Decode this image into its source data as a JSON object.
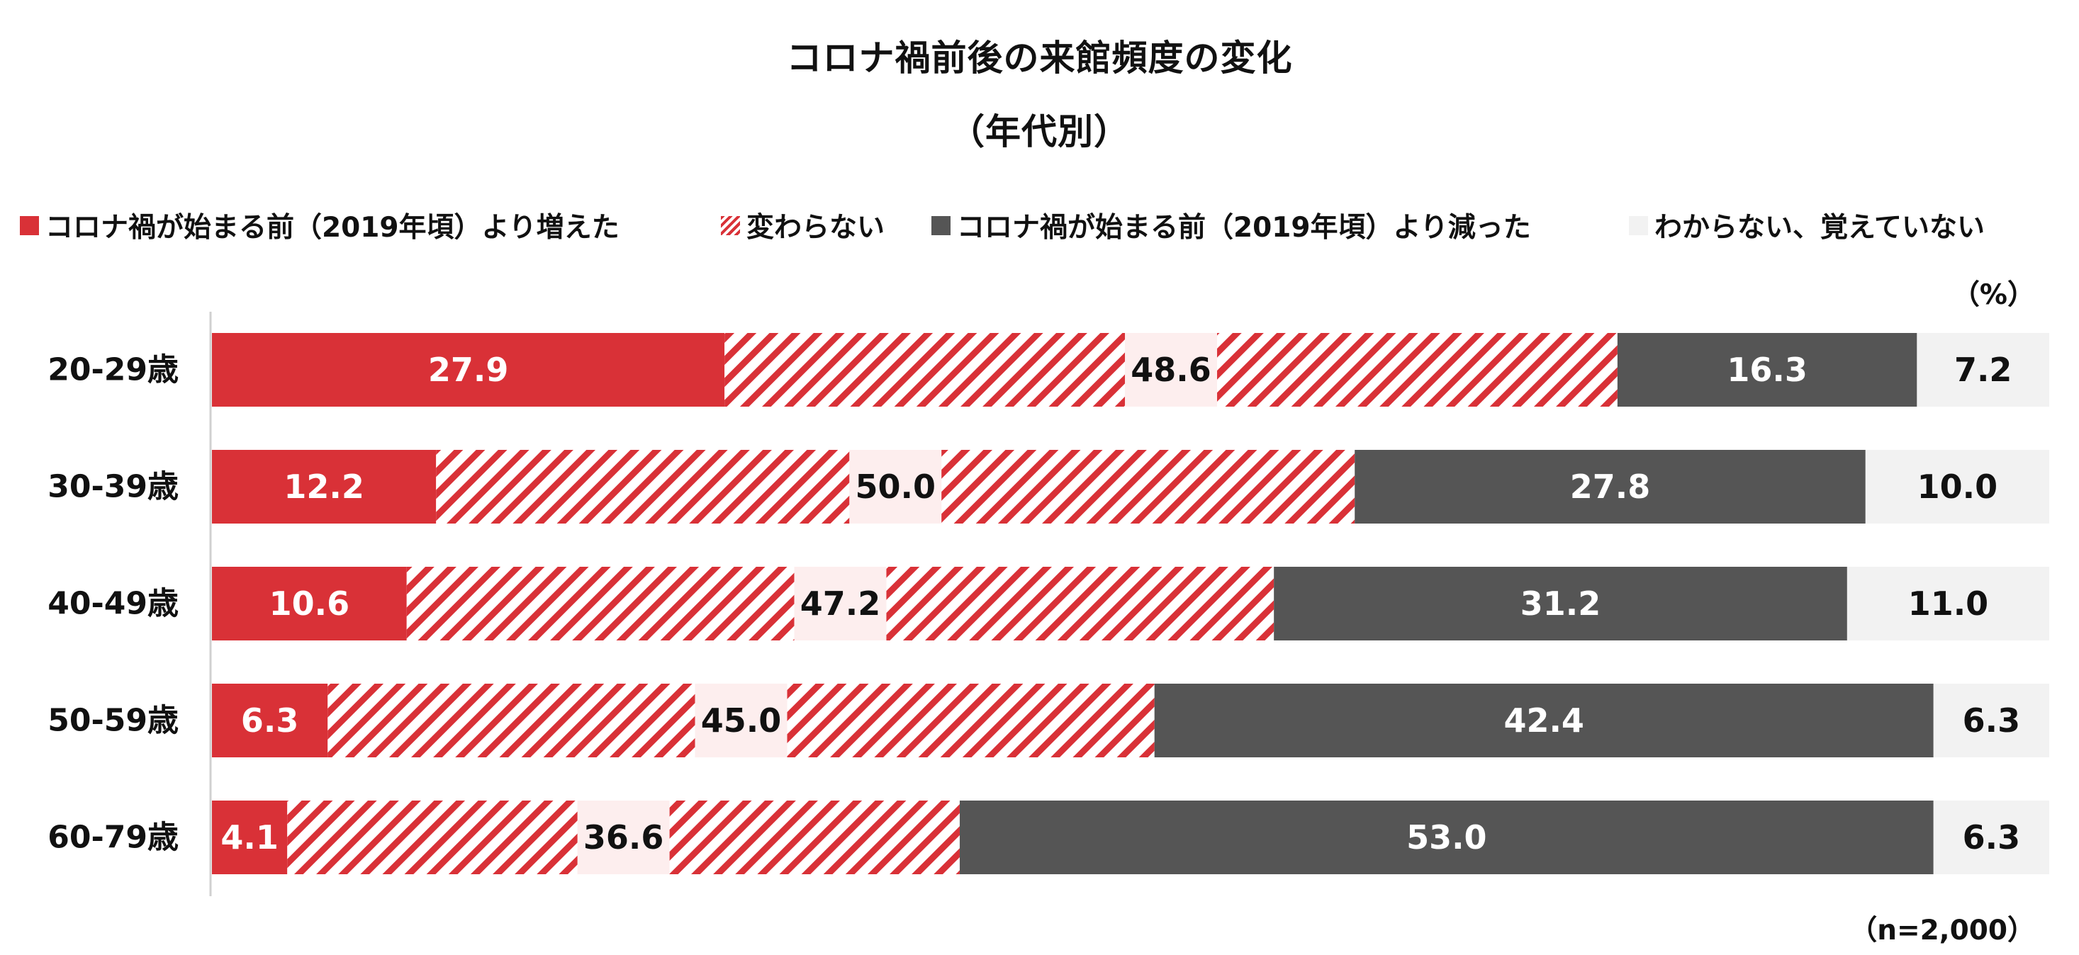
{
  "chart_data": {
    "type": "stacked-bar-horizontal",
    "title": "コロナ禍前後の来館頻度の変化",
    "subtitle": "（年代別）",
    "unit": "（%）",
    "sample_size": "（n=2,000）",
    "categories": [
      "20-29歳",
      "30-39歳",
      "40-49歳",
      "50-59歳",
      "60-79歳"
    ],
    "series": [
      {
        "name": "コロナ禍が始まる前（2019年頃）より増えた",
        "values": [
          27.9,
          12.2,
          10.6,
          6.3,
          4.1
        ],
        "color": "#d93137",
        "pattern": "solid",
        "label_color": "#ffffff"
      },
      {
        "name": "変わらない",
        "values": [
          48.6,
          50.0,
          47.2,
          45.0,
          36.6
        ],
        "color": "#d93137",
        "pattern": "hatched",
        "label_color": "#111111"
      },
      {
        "name": "コロナ禍が始まる前（2019年頃）より減った",
        "values": [
          16.3,
          27.8,
          31.2,
          42.4,
          53.0
        ],
        "color": "#555555",
        "pattern": "solid",
        "label_color": "#ffffff"
      },
      {
        "name": "わからない、覚えていない",
        "values": [
          7.2,
          10.0,
          11.0,
          6.3,
          6.3
        ],
        "color": "#f2f2f2",
        "pattern": "solid",
        "label_color": "#111111"
      }
    ],
    "xlim": [
      0,
      100
    ],
    "grid": false,
    "legend": "top"
  }
}
